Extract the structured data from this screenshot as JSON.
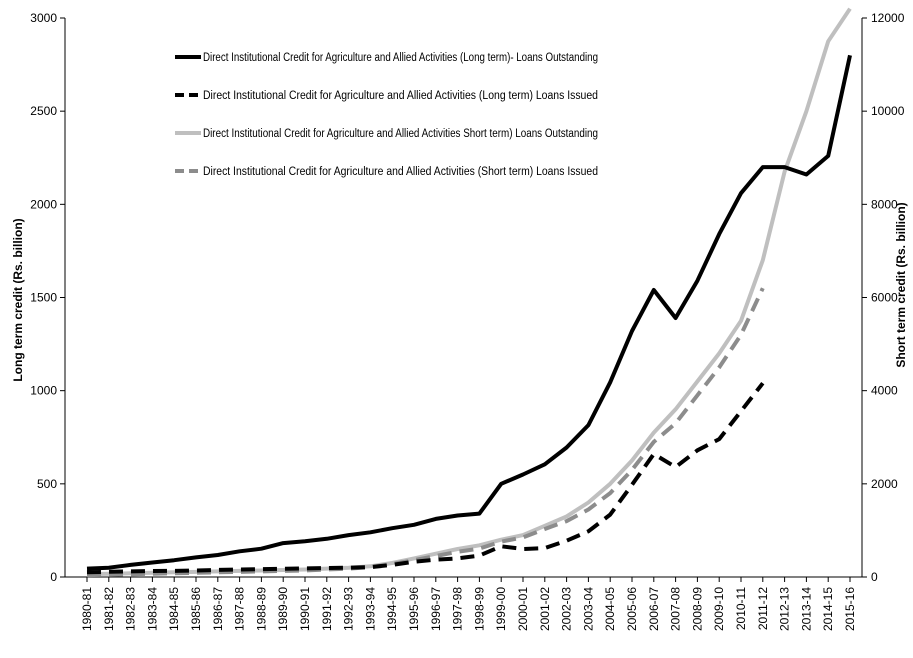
{
  "chart_data": {
    "type": "line",
    "title": "",
    "xlabel": "",
    "ylabel_left": "Long term credit (Rs. billion)",
    "ylabel_right": "Short term credit (Rs. billion)",
    "ylim_left": [
      0,
      3000
    ],
    "ylim_right": [
      0,
      12000
    ],
    "yticks_left": [
      0,
      500,
      1000,
      1500,
      2000,
      2500,
      3000
    ],
    "yticks_right": [
      0,
      2000,
      4000,
      6000,
      8000,
      10000,
      12000
    ],
    "grid": false,
    "legend_position": "top-center",
    "categories": [
      "1980-81",
      "1981-82",
      "1982-83",
      "1983-84",
      "1984-85",
      "1985-86",
      "1986-87",
      "1987-88",
      "1988-89",
      "1989-90",
      "1990-91",
      "1991-92",
      "1992-93",
      "1993-94",
      "1994-95",
      "1995-96",
      "1996-97",
      "1997-98",
      "1998-99",
      "1999-00",
      "2000-01",
      "2001-02",
      "2002-03",
      "2003-04",
      "2004-05",
      "2005-06",
      "2006-07",
      "2007-08",
      "2008-09",
      "2009-10",
      "2010-11",
      "2011-12",
      "2012-13",
      "2013-14",
      "2014-15",
      "2015-16"
    ],
    "series": [
      {
        "name": "Direct Institutional Credit for Agriculture and Allied Activities (Long term)- Loans Outstanding",
        "axis": "left",
        "color": "#000000",
        "dash": "solid",
        "values": [
          45,
          50,
          65,
          78,
          90,
          105,
          118,
          138,
          152,
          182,
          192,
          205,
          225,
          240,
          262,
          280,
          312,
          330,
          340,
          500,
          550,
          605,
          695,
          815,
          1045,
          1320,
          1540,
          1390,
          1590,
          1840,
          2060,
          2200,
          2200,
          2160,
          2260,
          2800
        ]
      },
      {
        "name": "Direct Institutional Credit for Agriculture and Allied Activities (Long term) Loans Issued",
        "axis": "left",
        "color": "#000000",
        "dash": "dashed",
        "values": [
          25,
          28,
          30,
          32,
          33,
          35,
          38,
          40,
          42,
          44,
          46,
          48,
          50,
          53,
          65,
          82,
          93,
          100,
          115,
          165,
          150,
          155,
          195,
          245,
          335,
          495,
          660,
          590,
          680,
          740,
          890,
          1040,
          null,
          null,
          null,
          null
        ]
      },
      {
        "name": "Direct Institutional Credit for Agriculture and Allied Activities Short term) Loans Outstanding",
        "axis": "right",
        "color": "#bfbfbf",
        "dash": "solid",
        "values": [
          60,
          70,
          80,
          90,
          100,
          110,
          120,
          130,
          140,
          150,
          160,
          180,
          200,
          230,
          300,
          400,
          500,
          600,
          680,
          800,
          900,
          1100,
          1300,
          1600,
          2000,
          2500,
          3100,
          3600,
          4200,
          4800,
          5500,
          6800,
          8700,
          10000,
          11500,
          12200
        ]
      },
      {
        "name": "Direct Institutional Credit for Agriculture and Allied Activities (Short term) Loans Issued",
        "axis": "right",
        "color": "#8c8c8c",
        "dash": "dashed",
        "values": [
          40,
          50,
          60,
          70,
          80,
          90,
          100,
          110,
          120,
          130,
          140,
          160,
          180,
          210,
          280,
          360,
          450,
          540,
          610,
          760,
          850,
          1030,
          1200,
          1450,
          1800,
          2300,
          2900,
          3300,
          3900,
          4500,
          5200,
          6200,
          null,
          null,
          null,
          null
        ]
      }
    ]
  }
}
